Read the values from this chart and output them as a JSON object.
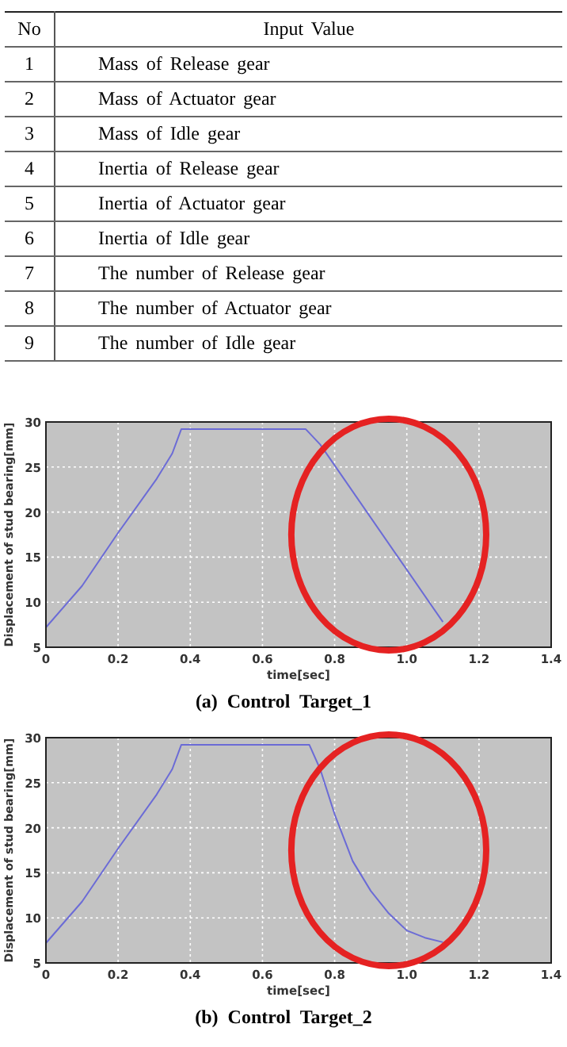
{
  "chart_data": [
    {
      "type": "other",
      "annotations": [
        "No",
        "Input Value"
      ],
      "categories": [
        "Mass of Release gear",
        "Mass of Actuator gear",
        "Mass of Idle gear",
        "Inertia of Release gear",
        "Inertia of Actuator gear",
        "Inertia of Idle gear",
        "The number of Release gear",
        "The number of Actuator gear",
        "The number of Idle gear"
      ],
      "values": [
        1,
        2,
        3,
        4,
        5,
        6,
        7,
        8,
        9
      ],
      "data_labels": true
    },
    {
      "type": "line",
      "title": "(a) Control Target_1",
      "xlabel": "time[sec]",
      "ylabel": "Displacement of stud bearing[mm]",
      "xlim": [
        0,
        1.4
      ],
      "ylim": [
        5,
        30
      ],
      "xticks": [
        0,
        0.2,
        0.4,
        0.6,
        0.8,
        {
          "value": 1,
          "label": "1.0"
        },
        1.2,
        1.4
      ],
      "yticks": [
        5,
        10,
        15,
        20,
        25,
        30
      ],
      "grid": true,
      "line_style": "solid",
      "series": [
        {
          "color": "#6b6bd6",
          "x": [
            0,
            0.1,
            0.2,
            0.307,
            0.35,
            0.375,
            0.72,
            0.76,
            1.1
          ],
          "values": [
            7.2,
            11.8,
            17.7,
            23.7,
            26.5,
            29.2,
            29.2,
            27.5,
            7.8
          ]
        }
      ]
    },
    {
      "type": "line",
      "title": "(b) Control Target_2",
      "xlabel": "time[sec]",
      "ylabel": "Displacement of stud bearing[mm]",
      "xlim": [
        0,
        1.4
      ],
      "ylim": [
        5,
        30
      ],
      "xticks": [
        0,
        0.2,
        0.4,
        0.6,
        0.8,
        {
          "value": 1,
          "label": "1.0"
        },
        1.2,
        1.4
      ],
      "yticks": [
        5,
        10,
        15,
        20,
        25,
        30
      ],
      "grid": true,
      "line_style": "solid",
      "series": [
        {
          "color": "#6b6bd6",
          "x": [
            0,
            0.1,
            0.2,
            0.307,
            0.35,
            0.375,
            0.73,
            0.76,
            0.8,
            0.85,
            0.9,
            0.95,
            1.0,
            1.05,
            1.1
          ],
          "values": [
            7.2,
            11.8,
            17.7,
            23.7,
            26.5,
            29.2,
            29.2,
            26.5,
            21.5,
            16.3,
            13,
            10.5,
            8.6,
            7.8,
            7.3
          ]
        }
      ]
    }
  ]
}
